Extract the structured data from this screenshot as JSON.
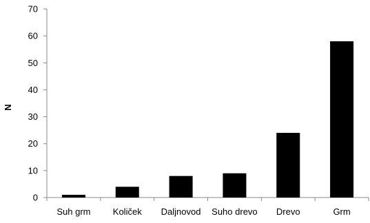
{
  "chart_data": {
    "type": "bar",
    "title": "",
    "xlabel": "",
    "ylabel": "N",
    "categories": [
      "Suh grm",
      "Količek",
      "Daljnovod",
      "Suho drevo",
      "Drevo",
      "Grm"
    ],
    "values": [
      1,
      4,
      8,
      9,
      24,
      58
    ],
    "ylim": [
      0,
      70
    ],
    "yticks": [
      0,
      10,
      20,
      30,
      40,
      50,
      60,
      70
    ],
    "grid": false,
    "legend": "none",
    "bar_color": "#000000"
  }
}
